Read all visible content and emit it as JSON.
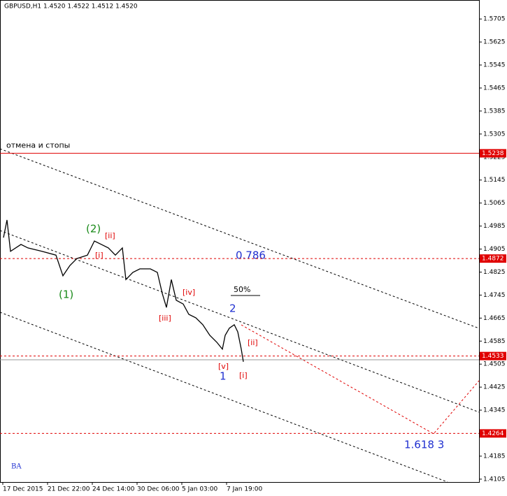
{
  "chart_data": {
    "type": "line",
    "title": "GBPUSD,H1  1.4520 1.4522 1.4512 1.4520",
    "x": [
      1.25,
      2.5,
      3.75,
      7.5,
      10,
      15,
      20,
      22.5,
      25,
      27.5,
      31.25,
      33.75,
      36.25,
      38.75,
      41.25,
      43.75,
      45,
      47.5,
      50,
      53.75,
      56.25,
      58,
      59.5,
      61.25,
      63,
      65.5,
      67.5,
      70,
      72.5,
      75,
      77.5,
      79.5,
      80.5,
      82,
      83.75,
      85,
      86.25,
      87
    ],
    "series": [
      {
        "name": "GBPUSD,H1",
        "color": "#000000",
        "values": [
          1.4945,
          1.5006,
          1.4897,
          1.4921,
          1.4909,
          1.4897,
          1.4884,
          1.4812,
          1.4848,
          1.4872,
          1.4884,
          1.4933,
          1.4921,
          1.4909,
          1.4884,
          1.4909,
          1.4799,
          1.4824,
          1.4836,
          1.4836,
          1.4824,
          1.4751,
          1.4702,
          1.4799,
          1.4727,
          1.4714,
          1.4678,
          1.4666,
          1.4642,
          1.4605,
          1.4581,
          1.4557,
          1.4605,
          1.463,
          1.4642,
          1.4617,
          1.4557,
          1.4513
        ]
      }
    ],
    "xlim": [
      0,
      171.25
    ],
    "xticks": [
      {
        "value": 1,
        "label": "17 Dec 2015"
      },
      {
        "value": 17,
        "label": "21 Dec 22:00"
      },
      {
        "value": 33,
        "label": "24 Dec 14:00"
      },
      {
        "value": 49,
        "label": "30 Dec 06:00"
      },
      {
        "value": 65,
        "label": "5 Jan 03:00"
      },
      {
        "value": 81,
        "label": "7 Jan 19:00"
      }
    ],
    "ylim": [
      1.4095,
      1.5771
    ],
    "yticks": [
      1.5705,
      1.5625,
      1.5545,
      1.5465,
      1.5385,
      1.5305,
      1.5225,
      1.5145,
      1.5065,
      1.4985,
      1.4905,
      1.4825,
      1.4745,
      1.4665,
      1.4585,
      1.4505,
      1.4425,
      1.4345,
      1.4185,
      1.4105
    ],
    "levels": [
      {
        "price": 1.5238,
        "style": "solid",
        "label": "отмена и стопы"
      },
      {
        "price": 1.4872,
        "style": "dashed"
      },
      {
        "price": 1.4533,
        "style": "dashed"
      },
      {
        "price": 1.4264,
        "style": "dashed"
      }
    ],
    "level_color": "#e00000",
    "annotations": [
      "(1)",
      "(2)",
      "[i]",
      "[ii]",
      "[iii]",
      "[iv]",
      "[v]",
      "1",
      "2",
      "[ii]",
      "[i]",
      "50%",
      "0.786",
      "1.618  3",
      "BA"
    ]
  }
}
